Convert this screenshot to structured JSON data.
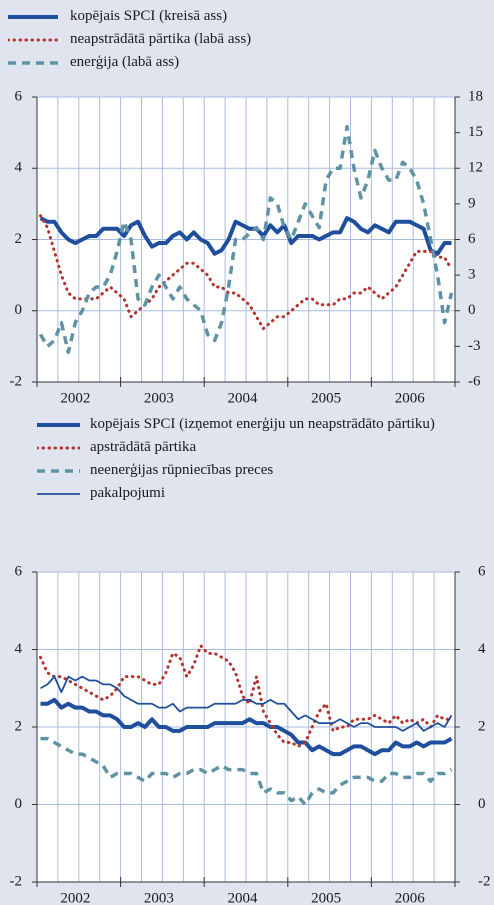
{
  "chart_data": [
    {
      "type": "line",
      "categories": [
        null,
        null,
        null,
        null,
        null,
        "2002",
        null,
        null,
        null,
        null,
        null,
        null,
        null,
        null,
        null,
        null,
        null,
        "2003",
        null,
        null,
        null,
        null,
        null,
        null,
        null,
        null,
        null,
        null,
        null,
        "2004",
        null,
        null,
        null,
        null,
        null,
        null,
        null,
        null,
        null,
        null,
        null,
        "2005",
        null,
        null,
        null,
        null,
        null,
        null,
        null,
        null,
        null,
        null,
        null,
        "2006",
        null,
        null,
        null,
        null,
        null,
        null
      ],
      "ylim": [
        -2,
        6
      ],
      "yticks": [
        -2,
        0,
        2,
        4,
        6
      ],
      "y2lim": [
        -6,
        18
      ],
      "y2ticks": [
        -6,
        -3,
        0,
        3,
        6,
        9,
        12,
        15,
        18
      ],
      "grid": true,
      "series": [
        {
          "name": "kopējais SPCI (kreisā ass)",
          "color": "#1f4e9c",
          "linestyle": "solid",
          "linewidth": 4,
          "values": [
            2.6,
            2.5,
            2.5,
            2.2,
            2.0,
            1.9,
            2.0,
            2.1,
            2.1,
            2.3,
            2.3,
            2.3,
            2.1,
            2.4,
            2.5,
            2.1,
            1.8,
            1.9,
            1.9,
            2.1,
            2.2,
            2.0,
            2.2,
            2.0,
            1.9,
            1.6,
            1.7,
            2.0,
            2.5,
            2.4,
            2.3,
            2.3,
            2.1,
            2.4,
            2.2,
            2.4,
            1.9,
            2.1,
            2.1,
            2.1,
            2.0,
            2.1,
            2.2,
            2.2,
            2.6,
            2.5,
            2.3,
            2.2,
            2.4,
            2.3,
            2.2,
            2.5,
            2.5,
            2.5,
            2.4,
            2.3,
            1.7,
            1.6,
            1.9,
            1.9
          ]
        },
        {
          "name": "neapstrādātā pārtika (labā ass)",
          "color": "#b5332e",
          "linestyle": "dotted",
          "linewidth": 3,
          "axis": "y2",
          "values": [
            8.0,
            7.0,
            5.0,
            3.0,
            1.5,
            1.0,
            1.0,
            1.0,
            1.0,
            1.5,
            2.0,
            1.5,
            1.0,
            -0.5,
            0.0,
            0.5,
            1.0,
            2.0,
            2.5,
            3.0,
            3.5,
            4.0,
            4.0,
            3.5,
            3.0,
            2.0,
            2.0,
            1.5,
            1.5,
            1.0,
            0.5,
            -0.5,
            -1.5,
            -1.0,
            -0.5,
            -0.5,
            0.0,
            0.5,
            1.0,
            1.0,
            0.5,
            0.5,
            0.5,
            1.0,
            1.0,
            1.5,
            1.5,
            2.0,
            1.5,
            1.0,
            1.5,
            2.0,
            3.0,
            4.0,
            5.0,
            5.0,
            5.0,
            4.5,
            4.5,
            3.5
          ]
        },
        {
          "name": "enerģija (labā ass)",
          "color": "#5f93a3",
          "linestyle": "dashed",
          "linewidth": 3.5,
          "axis": "y2",
          "values": [
            -2.0,
            -3.0,
            -2.5,
            -1.0,
            -3.5,
            -1.0,
            0.0,
            1.5,
            2.0,
            2.0,
            3.0,
            5.0,
            7.5,
            6.0,
            1.0,
            0.5,
            2.0,
            3.0,
            2.0,
            1.0,
            2.0,
            1.0,
            0.5,
            0.0,
            -2.0,
            -2.5,
            -1.0,
            2.0,
            6.0,
            6.0,
            6.5,
            7.0,
            6.0,
            9.5,
            9.0,
            7.0,
            6.0,
            7.5,
            9.0,
            8.0,
            7.0,
            11.0,
            12.0,
            12.0,
            15.5,
            12.0,
            9.5,
            11.0,
            13.5,
            12.0,
            11.0,
            11.0,
            12.5,
            12.0,
            11.0,
            9.0,
            6.0,
            3.0,
            -1.0,
            1.5
          ]
        }
      ]
    },
    {
      "type": "line",
      "categories": [
        null,
        null,
        null,
        null,
        null,
        "2002",
        null,
        null,
        null,
        null,
        null,
        null,
        null,
        null,
        null,
        null,
        null,
        "2003",
        null,
        null,
        null,
        null,
        null,
        null,
        null,
        null,
        null,
        null,
        null,
        "2004",
        null,
        null,
        null,
        null,
        null,
        null,
        null,
        null,
        null,
        null,
        null,
        "2005",
        null,
        null,
        null,
        null,
        null,
        null,
        null,
        null,
        null,
        null,
        null,
        "2006",
        null,
        null,
        null,
        null,
        null,
        null
      ],
      "ylim": [
        -2,
        6
      ],
      "yticks": [
        -2,
        0,
        2,
        4,
        6
      ],
      "y2lim": [
        -2,
        6
      ],
      "y2ticks": [
        -2,
        0,
        2,
        4,
        6
      ],
      "grid": true,
      "series": [
        {
          "name": "kopējais SPCI (izņemot enerģiju un neapstrādāto pārtiku)",
          "color": "#1f4e9c",
          "linestyle": "solid",
          "linewidth": 4,
          "values": [
            2.6,
            2.6,
            2.7,
            2.5,
            2.6,
            2.5,
            2.5,
            2.4,
            2.4,
            2.3,
            2.3,
            2.2,
            2.0,
            2.0,
            2.1,
            2.0,
            2.2,
            2.0,
            2.0,
            1.9,
            1.9,
            2.0,
            2.0,
            2.0,
            2.0,
            2.1,
            2.1,
            2.1,
            2.1,
            2.1,
            2.2,
            2.1,
            2.1,
            2.0,
            2.0,
            1.9,
            1.8,
            1.6,
            1.6,
            1.4,
            1.5,
            1.4,
            1.3,
            1.3,
            1.4,
            1.5,
            1.5,
            1.4,
            1.3,
            1.4,
            1.4,
            1.6,
            1.5,
            1.5,
            1.6,
            1.5,
            1.6,
            1.6,
            1.6,
            1.7
          ]
        },
        {
          "name": "apstrādātā pārtika",
          "color": "#b5332e",
          "linestyle": "dotted",
          "linewidth": 3,
          "values": [
            3.8,
            3.4,
            3.3,
            3.3,
            3.2,
            3.1,
            3.0,
            2.9,
            2.8,
            2.7,
            2.8,
            3.0,
            3.3,
            3.3,
            3.3,
            3.2,
            3.1,
            3.1,
            3.4,
            3.9,
            3.8,
            3.3,
            3.6,
            4.1,
            3.9,
            3.9,
            3.8,
            3.7,
            3.4,
            2.8,
            2.6,
            3.3,
            2.4,
            2.1,
            1.8,
            1.6,
            1.6,
            1.5,
            1.6,
            2.0,
            2.4,
            2.6,
            1.9,
            2.0,
            2.0,
            2.2,
            2.2,
            2.2,
            2.3,
            2.2,
            2.1,
            2.3,
            2.1,
            2.2,
            2.1,
            2.2,
            2.0,
            2.3,
            2.2,
            2.2
          ]
        },
        {
          "name": "neenerģijas rūpniecības preces",
          "color": "#5f93a3",
          "linestyle": "dashed",
          "linewidth": 3.5,
          "values": [
            1.7,
            1.7,
            1.6,
            1.5,
            1.4,
            1.3,
            1.3,
            1.2,
            1.1,
            1.0,
            0.7,
            0.8,
            0.8,
            0.8,
            0.7,
            0.6,
            0.8,
            0.8,
            0.8,
            0.7,
            0.8,
            0.8,
            0.9,
            0.9,
            0.8,
            0.9,
            1.0,
            0.9,
            0.9,
            0.9,
            0.8,
            0.8,
            0.3,
            0.4,
            0.3,
            0.3,
            0.1,
            0.2,
            0.0,
            0.3,
            0.4,
            0.3,
            0.3,
            0.5,
            0.6,
            0.7,
            0.7,
            0.7,
            0.6,
            0.6,
            0.8,
            0.8,
            0.7,
            0.7,
            0.8,
            0.8,
            0.6,
            0.8,
            0.8,
            0.9
          ]
        },
        {
          "name": "pakalpojumi",
          "color": "#1f4e9c",
          "linestyle": "solid",
          "linewidth": 1.8,
          "values": [
            3.0,
            3.1,
            3.3,
            2.9,
            3.3,
            3.2,
            3.3,
            3.2,
            3.2,
            3.1,
            3.1,
            3.0,
            2.8,
            2.7,
            2.6,
            2.6,
            2.6,
            2.5,
            2.5,
            2.6,
            2.4,
            2.5,
            2.5,
            2.5,
            2.5,
            2.6,
            2.6,
            2.6,
            2.6,
            2.7,
            2.7,
            2.6,
            2.6,
            2.7,
            2.6,
            2.6,
            2.4,
            2.2,
            2.3,
            2.2,
            2.1,
            2.1,
            2.1,
            2.2,
            2.1,
            2.0,
            2.1,
            2.1,
            2.0,
            2.0,
            2.0,
            2.0,
            1.9,
            2.0,
            2.1,
            1.9,
            2.0,
            2.1,
            2.0,
            2.3
          ]
        }
      ]
    }
  ]
}
